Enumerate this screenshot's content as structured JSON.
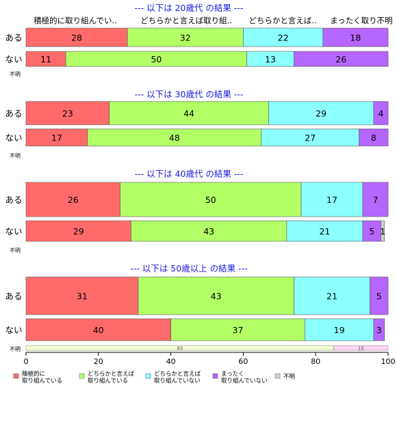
{
  "chart_data": {
    "type": "bar",
    "orientation": "horizontal",
    "stacked": true,
    "xlim": [
      0,
      100
    ],
    "x_ticks": [
      "0",
      "20",
      "40",
      "60",
      "80",
      "100"
    ],
    "categories": [
      "積極的に取り組んでいる",
      "どちらかと言えば取り組んでいる",
      "どちらかと言えば取り組んでいない",
      "まったく取り組んでいない",
      "不明"
    ],
    "colors": [
      "#ff6b6b",
      "#b2ff66",
      "#8cffff",
      "#b566ff",
      "#d0d0d0"
    ],
    "column_headers": [
      "積極的に取り組んでい..",
      "どちらかと言えば取り組..",
      "どちらかと言えば..",
      "まったく取り..",
      "不明"
    ],
    "legend": [
      "積極的に\n取り組んでいる",
      "どちらかと言えば\n取り組んでいる",
      "どちらかと言えば\n取り組んでいない",
      "まったく\n取り組んでいない",
      "不明"
    ],
    "legend_position": "bottom",
    "groups": [
      {
        "title": "--- 以下は 20歳代 の結果 ---",
        "rows": [
          {
            "label": "ある",
            "values": [
              28,
              32,
              22,
              18,
              0
            ]
          },
          {
            "label": "ない",
            "values": [
              11,
              50,
              13,
              26,
              0
            ]
          }
        ],
        "unknown_label": "不明"
      },
      {
        "title": "--- 以下は 30歳代 の結果 ---",
        "rows": [
          {
            "label": "ある",
            "values": [
              23,
              44,
              29,
              4,
              0
            ]
          },
          {
            "label": "ない",
            "values": [
              17,
              48,
              27,
              8,
              0
            ]
          }
        ],
        "unknown_label": "不明"
      },
      {
        "title": "--- 以下は 40歳代 の結果 ---",
        "rows": [
          {
            "label": "ある",
            "values": [
              26,
              50,
              17,
              7,
              0
            ]
          },
          {
            "label": "ない",
            "values": [
              29,
              43,
              21,
              5,
              1
            ]
          }
        ],
        "unknown_label": "不明"
      },
      {
        "title": "--- 以下は 50歳以上 の結果 ---",
        "rows": [
          {
            "label": "ある",
            "values": [
              31,
              43,
              21,
              5,
              0
            ]
          },
          {
            "label": "ない",
            "values": [
              40,
              37,
              19,
              3,
              0
            ]
          }
        ],
        "unknown_label": "不明",
        "unknown_bar": {
          "values": [
            85,
            15
          ],
          "colors": [
            "#f4ffd6",
            "#ffd6f4"
          ]
        }
      }
    ]
  }
}
